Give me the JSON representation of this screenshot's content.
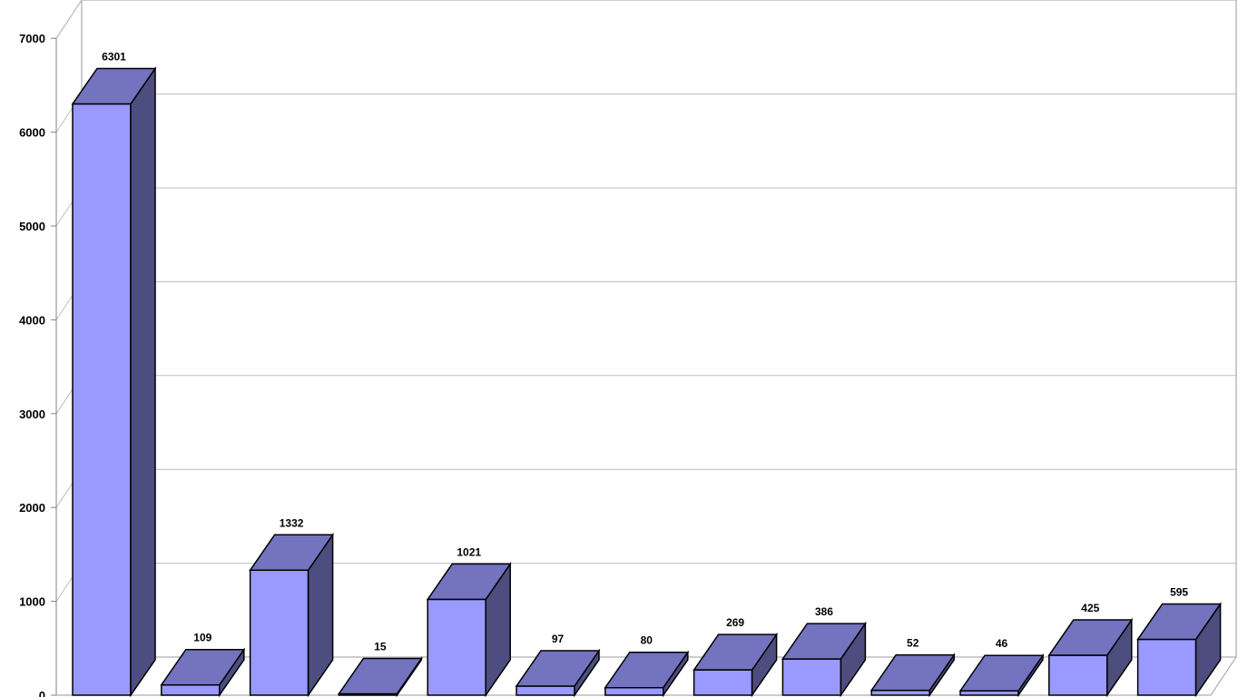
{
  "chart_data": {
    "type": "bar",
    "title": "",
    "xlabel": "",
    "ylabel": "",
    "ylim": [
      0,
      7000
    ],
    "yticks": [
      0,
      1000,
      2000,
      3000,
      4000,
      5000,
      6000,
      7000
    ],
    "grid": true,
    "three_d": true,
    "values": [
      6301,
      109,
      1332,
      15,
      1021,
      97,
      80,
      269,
      386,
      52,
      46,
      425,
      595
    ],
    "data_labels": [
      "6301",
      "109",
      "1332",
      "15",
      "1021",
      "97",
      "80",
      "269",
      "386",
      "52",
      "46",
      "425",
      "595"
    ],
    "colors": {
      "front": "#9999ff",
      "top": "#7373c0",
      "side": "#4d4d80"
    }
  }
}
